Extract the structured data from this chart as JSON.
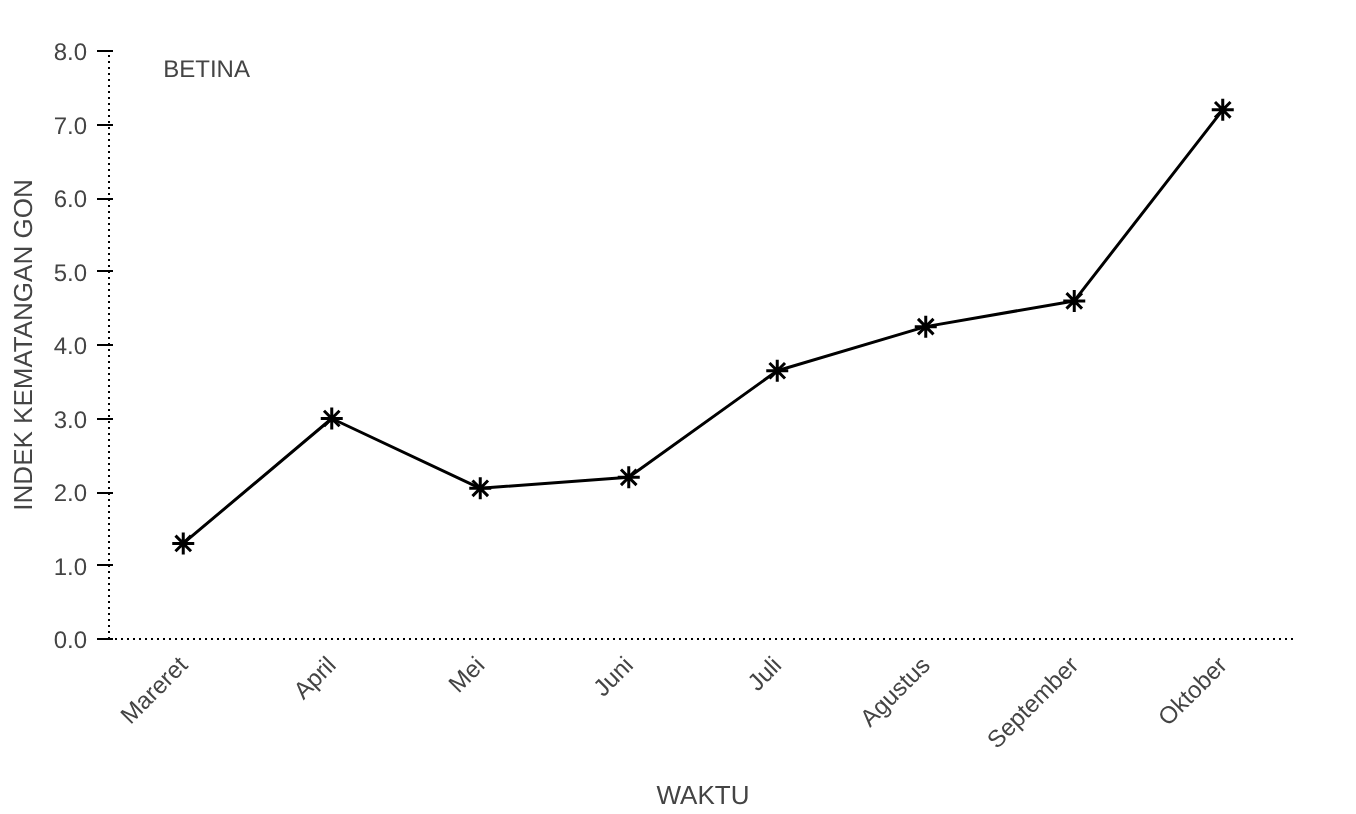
{
  "chart_data": {
    "type": "line",
    "title": "BETINA",
    "xlabel": "WAKTU",
    "ylabel": "INDEK KEMATANGAN GON",
    "categories": [
      "Mareret",
      "April",
      "Mei",
      "Juni",
      "Juli",
      "Agustus",
      "September",
      "Oktober"
    ],
    "series": [
      {
        "color": "#000000",
        "values": [
          1.3,
          3.0,
          2.05,
          2.2,
          3.65,
          4.25,
          4.6,
          7.2
        ]
      }
    ],
    "ylim": [
      0,
      8
    ],
    "yticks": [
      {
        "value": 0,
        "label": "0.0"
      },
      {
        "value": 1,
        "label": "1.0"
      },
      {
        "value": 2,
        "label": "2.0"
      },
      {
        "value": 3,
        "label": "3.0"
      },
      {
        "value": 4,
        "label": "4.0"
      },
      {
        "value": 5,
        "label": "5.0"
      },
      {
        "value": 6,
        "label": "6.0"
      },
      {
        "value": 7,
        "label": "7.0"
      },
      {
        "value": 8,
        "label": "8.0"
      }
    ],
    "grid": false,
    "marker": "cross",
    "line_style": "solid"
  }
}
